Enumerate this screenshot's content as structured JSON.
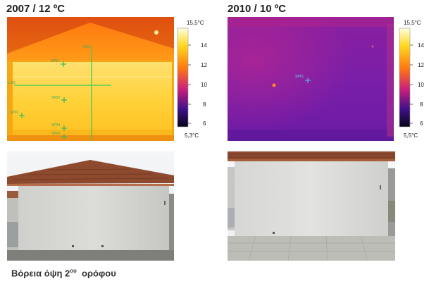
{
  "left": {
    "title": "2007 / 12 ºC",
    "scale_max": "15,5°C",
    "scale_min": "5,3°C",
    "ticks": [
      "14",
      "12",
      "10",
      "8",
      "6"
    ],
    "markers": [
      "LI01",
      "LI02",
      "SP01",
      "SP02",
      "SP03",
      "SP04",
      "SP05"
    ]
  },
  "right": {
    "title": "2010 / 10 ºC",
    "scale_max": "15,5°C",
    "scale_min": "5,5°C",
    "ticks": [
      "14",
      "12",
      "10",
      "8",
      "6"
    ],
    "markers": [
      "SP01"
    ]
  },
  "caption": {
    "prefix": "Βόρεια όψη 2",
    "sup": "ου",
    "suffix": "  ορόφου"
  }
}
